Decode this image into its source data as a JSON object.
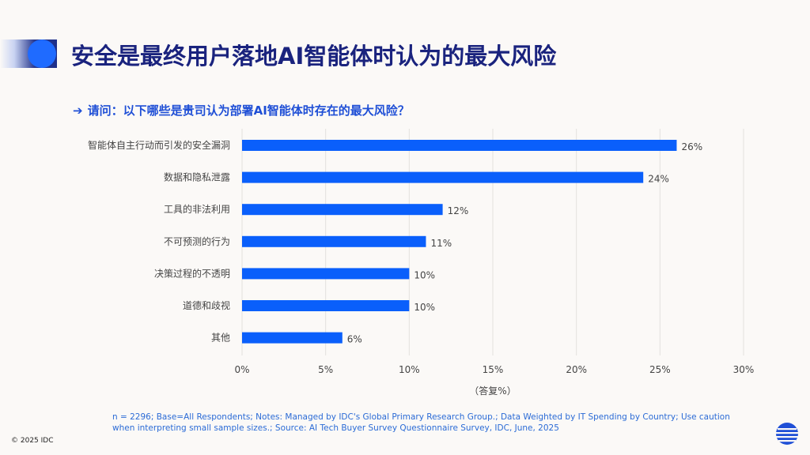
{
  "page": {
    "title": "安全是最终用户落地AI智能体时认为的最大风险",
    "question_arrow": "➔",
    "question": "请问：以下哪些是贵司认为部署AI智能体时存在的最大风险？",
    "footnote": "n = 2296; Base=All Respondents; Notes: Managed by IDC's Global Primary Research Group.; Data Weighted by IT Spending by Country; Use caution when interpreting small sample sizes.; Source: AI Tech Buyer Survey Questionnaire Survey, IDC, June, 2025",
    "copyright": "© 2025 IDC"
  },
  "colors": {
    "bar": "#0a5ffb",
    "title": "#1a237e",
    "accent": "#1f4fd6",
    "grid": "#e3e1de",
    "text": "#444444"
  },
  "chart_data": {
    "type": "bar",
    "orientation": "horizontal",
    "categories": [
      "智能体自主行动而引发的安全漏洞",
      "数据和隐私泄露",
      "工具的非法利用",
      "不可预测的行为",
      "决策过程的不透明",
      "道德和歧视",
      "其他"
    ],
    "values": [
      26,
      24,
      12,
      11,
      10,
      10,
      6
    ],
    "value_labels": [
      "26%",
      "24%",
      "12%",
      "11%",
      "10%",
      "10%",
      "6%"
    ],
    "xlim": [
      0,
      30
    ],
    "xticks": [
      0,
      5,
      10,
      15,
      20,
      25,
      30
    ],
    "xtick_labels": [
      "0%",
      "5%",
      "10%",
      "15%",
      "20%",
      "25%",
      "30%"
    ],
    "xlabel": "（答复%）",
    "ylabel": "",
    "grid": true
  }
}
